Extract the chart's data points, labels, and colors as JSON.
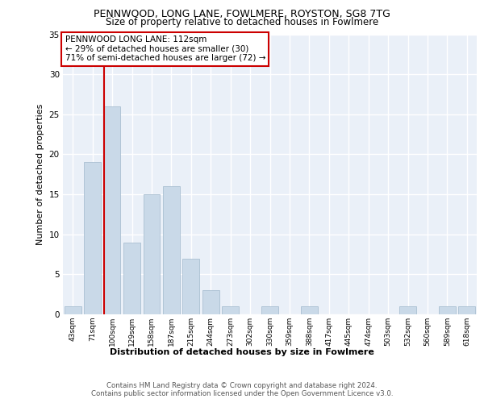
{
  "title1": "PENNWOOD, LONG LANE, FOWLMERE, ROYSTON, SG8 7TG",
  "title2": "Size of property relative to detached houses in Fowlmere",
  "xlabel": "Distribution of detached houses by size in Fowlmere",
  "ylabel": "Number of detached properties",
  "categories": [
    "43sqm",
    "71sqm",
    "100sqm",
    "129sqm",
    "158sqm",
    "187sqm",
    "215sqm",
    "244sqm",
    "273sqm",
    "302sqm",
    "330sqm",
    "359sqm",
    "388sqm",
    "417sqm",
    "445sqm",
    "474sqm",
    "503sqm",
    "532sqm",
    "560sqm",
    "589sqm",
    "618sqm"
  ],
  "values": [
    1,
    19,
    26,
    9,
    15,
    16,
    7,
    3,
    1,
    0,
    1,
    0,
    1,
    0,
    0,
    0,
    0,
    1,
    0,
    1,
    1
  ],
  "bar_color": "#c9d9e8",
  "bar_edge_color": "#a0b8cc",
  "property_line_idx": 2,
  "property_line_color": "#cc0000",
  "annotation_text": "PENNWOOD LONG LANE: 112sqm\n← 29% of detached houses are smaller (30)\n71% of semi-detached houses are larger (72) →",
  "annotation_box_color": "#ffffff",
  "annotation_box_edge": "#cc0000",
  "ylim": [
    0,
    35
  ],
  "yticks": [
    0,
    5,
    10,
    15,
    20,
    25,
    30,
    35
  ],
  "footer1": "Contains HM Land Registry data © Crown copyright and database right 2024.",
  "footer2": "Contains public sector information licensed under the Open Government Licence v3.0.",
  "bg_color": "#eaf0f8",
  "grid_color": "#ffffff"
}
